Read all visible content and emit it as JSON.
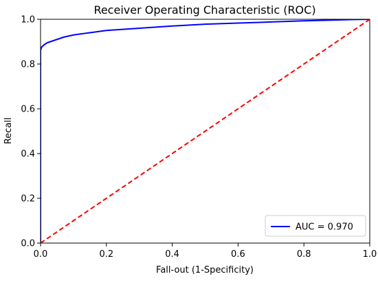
{
  "chart_data": {
    "type": "line",
    "title": "Receiver Operating Characteristic (ROC)",
    "xlabel": "Fall-out (1-Specificity)",
    "ylabel": "Recall",
    "xlim": [
      0,
      1
    ],
    "ylim": [
      0,
      1
    ],
    "xticks": [
      "0.0",
      "0.2",
      "0.4",
      "0.6",
      "0.8",
      "1.0"
    ],
    "yticks": [
      "0.0",
      "0.2",
      "0.4",
      "0.6",
      "0.8",
      "1.0"
    ],
    "grid": false,
    "legend_position": "lower-right",
    "series": [
      {
        "name": "AUC = 0.970",
        "color": "#0000ff",
        "style": "solid",
        "x": [
          0,
          0.0,
          0.003,
          0.01,
          0.02,
          0.04,
          0.07,
          0.1,
          0.15,
          0.2,
          0.3,
          0.4,
          0.5,
          0.6,
          0.7,
          0.8,
          0.9,
          0.95,
          1.0
        ],
        "y": [
          0,
          0.86,
          0.875,
          0.885,
          0.895,
          0.905,
          0.92,
          0.93,
          0.94,
          0.95,
          0.96,
          0.97,
          0.978,
          0.983,
          0.988,
          0.993,
          0.997,
          0.999,
          1.0
        ]
      },
      {
        "name": "",
        "color": "#ff0000",
        "style": "dashed",
        "x": [
          0,
          1
        ],
        "y": [
          0,
          1
        ]
      }
    ]
  }
}
